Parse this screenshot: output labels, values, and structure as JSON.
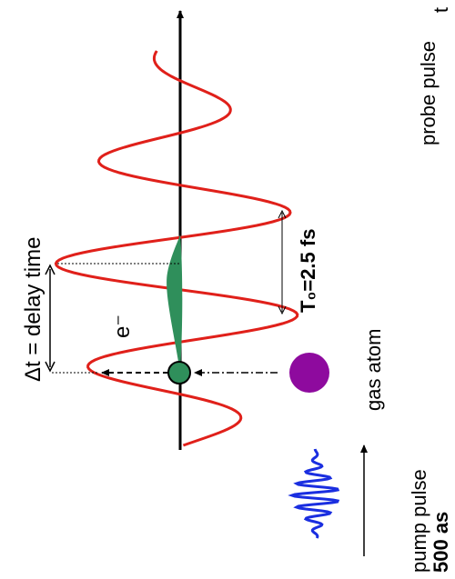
{
  "labels": {
    "time_axis": "t",
    "probe": "probe pulse",
    "delay": "Δt  = delay time",
    "period": "T₀=2.5 fs",
    "electron": "e⁻",
    "atom": "gas atom",
    "pump": "pump pulse",
    "pump_duration": "500 as"
  }
}
